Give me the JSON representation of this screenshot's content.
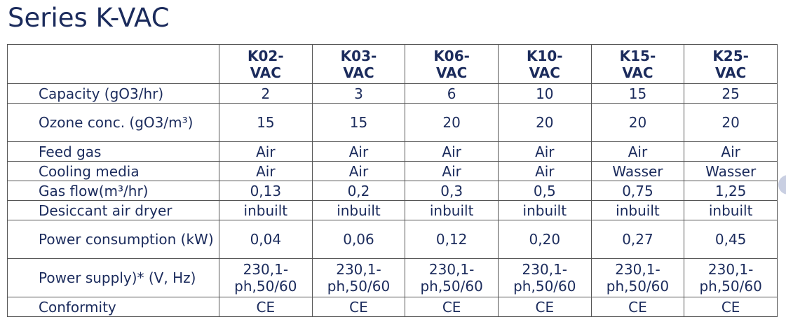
{
  "title": "Series K-VAC",
  "columns": [
    "K02-\nVAC",
    "K03-\nVAC",
    "K06-\nVAC",
    "K10-\nVAC",
    "K15-\nVAC",
    "K25-\nVAC"
  ],
  "rows": [
    {
      "label": "Capacity (gO3/hr)",
      "values": [
        "2",
        "3",
        "6",
        "10",
        "15",
        "25"
      ],
      "tall": false
    },
    {
      "label": "Ozone conc. (gO3/m³)",
      "values": [
        "15",
        "15",
        "20",
        "20",
        "20",
        "20"
      ],
      "tall": true
    },
    {
      "label": "Feed gas",
      "values": [
        "Air",
        "Air",
        "Air",
        "Air",
        "Air",
        "Air"
      ],
      "tall": false
    },
    {
      "label": "Cooling media",
      "values": [
        "Air",
        "Air",
        "Air",
        "Air",
        "Wasser",
        "Wasser"
      ],
      "tall": false
    },
    {
      "label": "Gas flow(m³/hr)",
      "values": [
        "0,13",
        "0,2",
        "0,3",
        "0,5",
        "0,75",
        "1,25"
      ],
      "tall": false
    },
    {
      "label": "Desiccant air dryer",
      "values": [
        "inbuilt",
        "inbuilt",
        "inbuilt",
        "inbuilt",
        "inbuilt",
        "inbuilt"
      ],
      "tall": false
    },
    {
      "label": "Power consumption (kW)",
      "values": [
        "0,04",
        "0,06",
        "0,12",
        "0,20",
        "0,27",
        "0,45"
      ],
      "tall": true
    },
    {
      "label": "Power supply)* (V, Hz)",
      "values": [
        "230,1-ph,50/60",
        "230,1-ph,50/60",
        "230,1-ph,50/60",
        "230,1-ph,50/60",
        "230,1-ph,50/60",
        "230,1-ph,50/60"
      ],
      "tall": true
    },
    {
      "label": "Conformity",
      "values": [
        "CE",
        "CE",
        "CE",
        "CE",
        "CE",
        "CE"
      ],
      "tall": false
    }
  ],
  "colors": {
    "text": "#1b2b5c",
    "border": "#555555"
  }
}
